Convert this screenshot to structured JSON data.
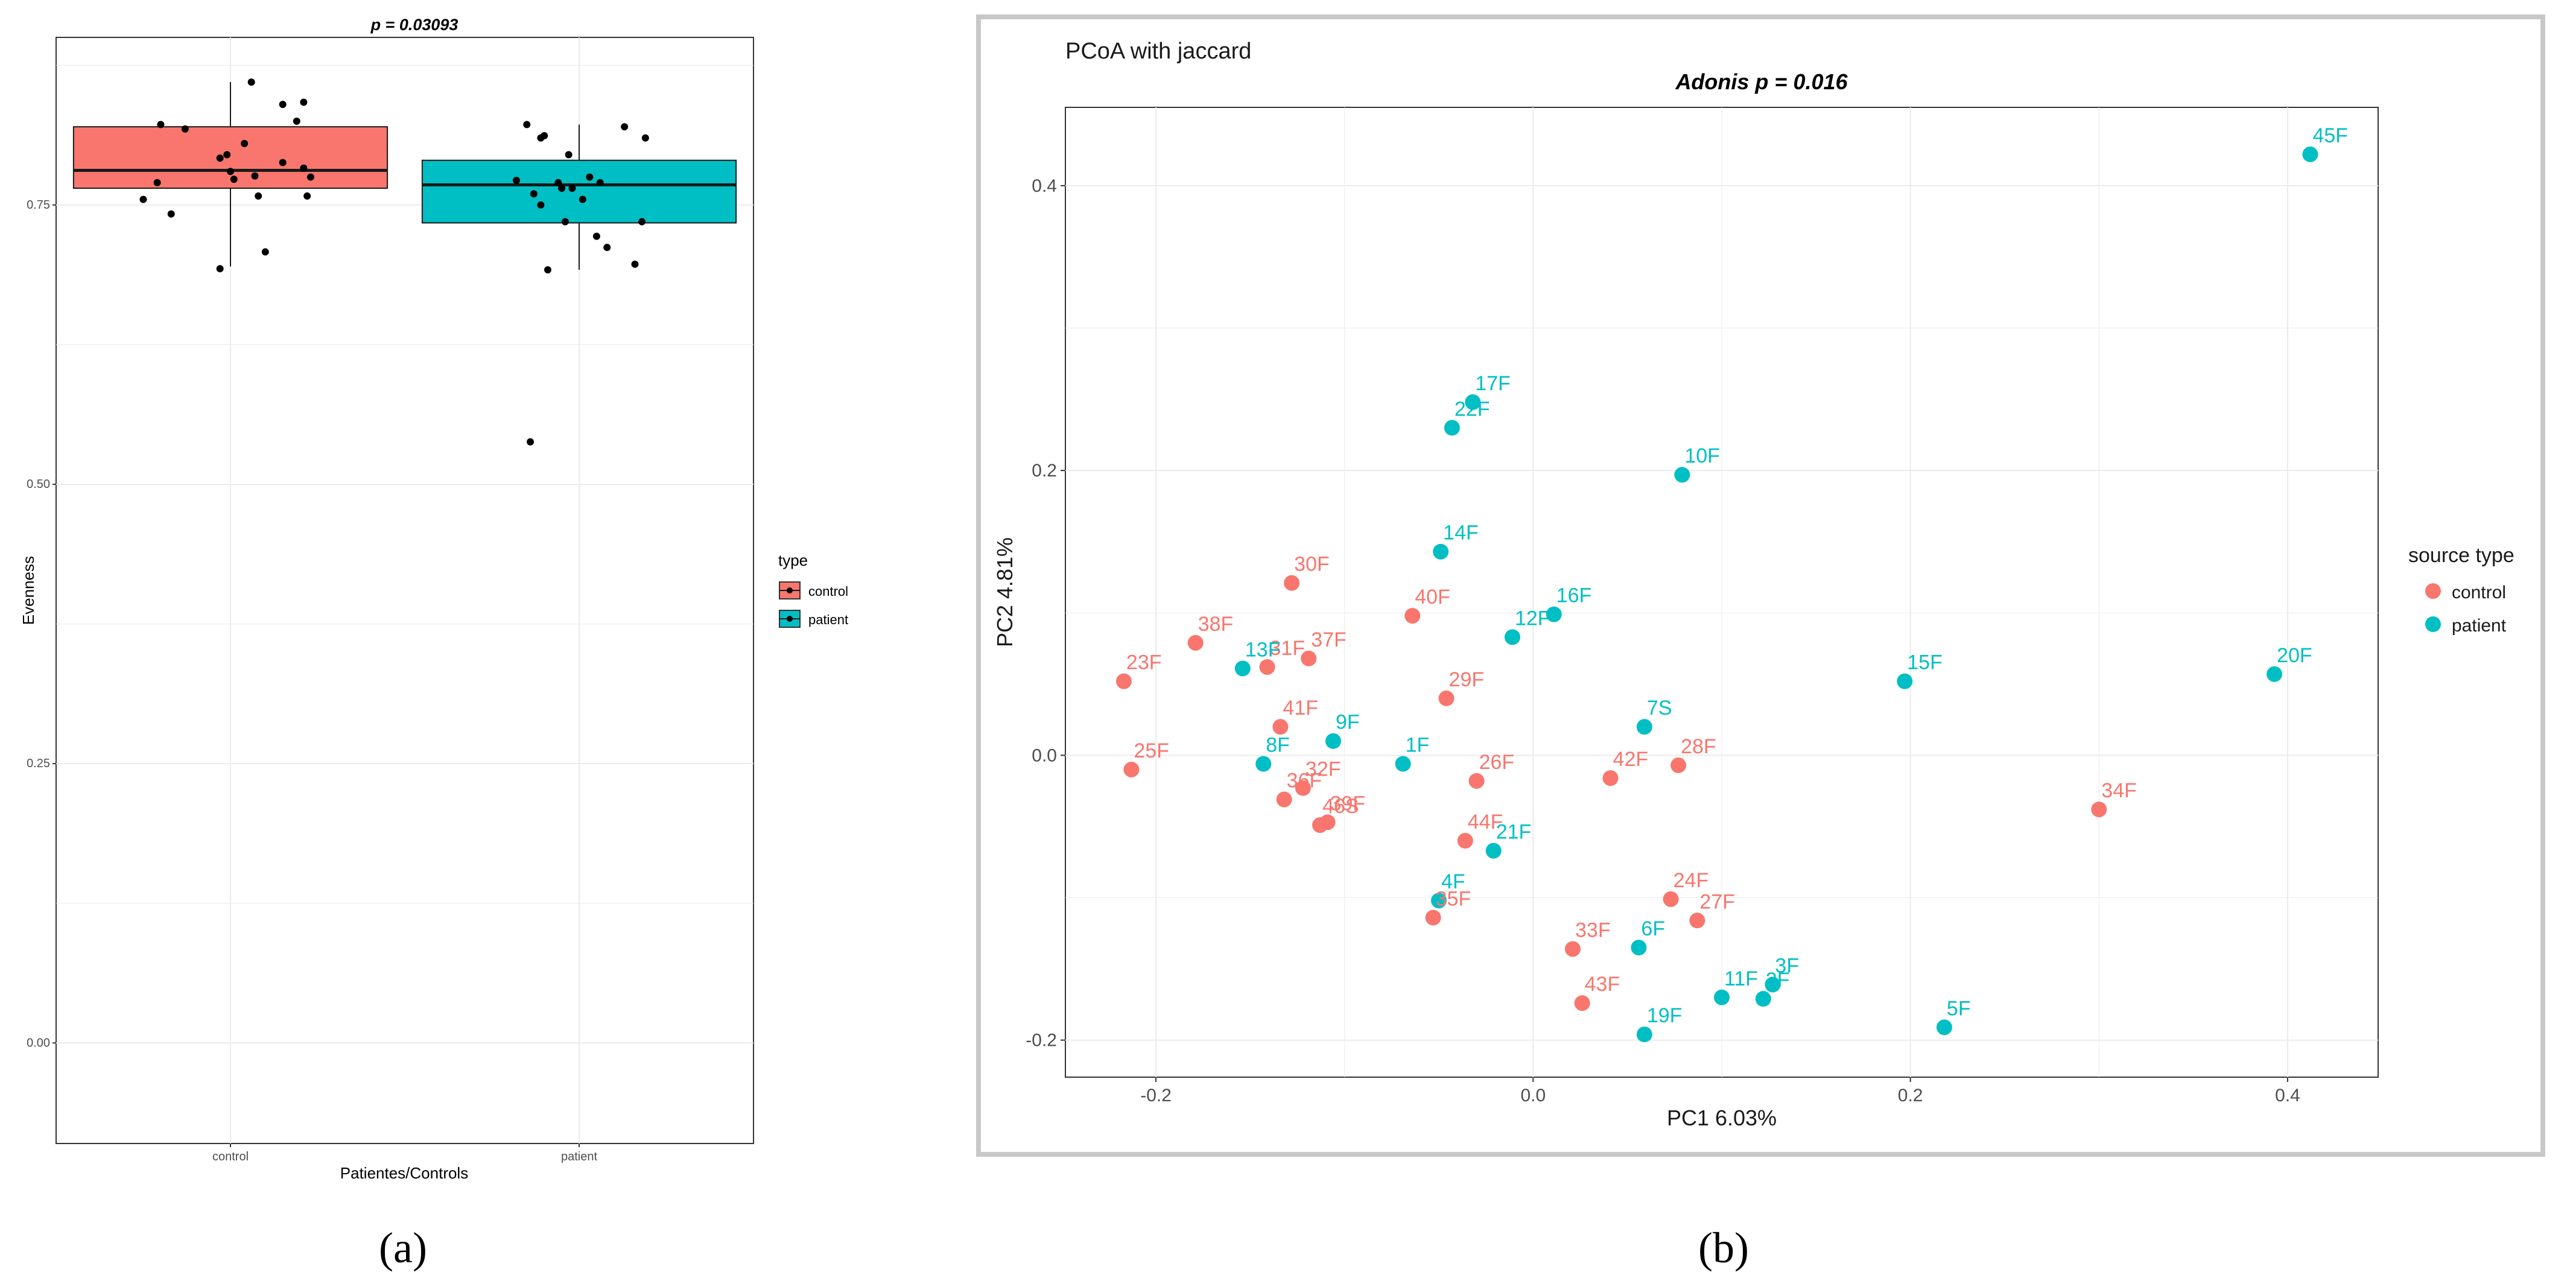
{
  "figure": {
    "caption_a": "(a)",
    "caption_b": "(b)"
  },
  "colors": {
    "control": "#F8766D",
    "patient": "#00BFC4",
    "grid": "#ebebeb",
    "box_line": "#1a1a1a"
  },
  "chart_data": [
    {
      "id": "a",
      "type": "boxplot",
      "title": "p = 0.03093",
      "xlabel": "Patientes/Controls",
      "ylabel": "Evenness",
      "categories": [
        "control",
        "patient"
      ],
      "ylim": [
        -0.09,
        0.9
      ],
      "yticks": [
        0.0,
        0.25,
        0.5,
        0.75
      ],
      "ytick_labels": [
        "0.00",
        "0.25",
        "0.50",
        "0.75"
      ],
      "legend": {
        "title": "type",
        "entries": [
          "control",
          "patient"
        ],
        "placement": "right"
      },
      "boxes": [
        {
          "name": "control",
          "q1": 0.765,
          "median": 0.781,
          "q3": 0.82,
          "whisker_low": 0.695,
          "whisker_high": 0.86
        },
        {
          "name": "patient",
          "q1": 0.734,
          "median": 0.768,
          "q3": 0.79,
          "whisker_low": 0.692,
          "whisker_high": 0.822
        }
      ],
      "points": [
        {
          "group": "control",
          "x_jitter": -0.25,
          "y": 0.755
        },
        {
          "group": "control",
          "x_jitter": -0.21,
          "y": 0.77
        },
        {
          "group": "control",
          "x_jitter": -0.17,
          "y": 0.742
        },
        {
          "group": "control",
          "x_jitter": -0.2,
          "y": 0.822
        },
        {
          "group": "control",
          "x_jitter": -0.13,
          "y": 0.818
        },
        {
          "group": "control",
          "x_jitter": -0.03,
          "y": 0.693
        },
        {
          "group": "control",
          "x_jitter": -0.03,
          "y": 0.792
        },
        {
          "group": "control",
          "x_jitter": -0.01,
          "y": 0.795
        },
        {
          "group": "control",
          "x_jitter": 0.0,
          "y": 0.78
        },
        {
          "group": "control",
          "x_jitter": 0.01,
          "y": 0.773
        },
        {
          "group": "control",
          "x_jitter": 0.07,
          "y": 0.776
        },
        {
          "group": "control",
          "x_jitter": 0.04,
          "y": 0.805
        },
        {
          "group": "control",
          "x_jitter": 0.08,
          "y": 0.758
        },
        {
          "group": "control",
          "x_jitter": 0.06,
          "y": 0.86
        },
        {
          "group": "control",
          "x_jitter": 0.1,
          "y": 0.708
        },
        {
          "group": "control",
          "x_jitter": 0.15,
          "y": 0.84
        },
        {
          "group": "control",
          "x_jitter": 0.15,
          "y": 0.788
        },
        {
          "group": "control",
          "x_jitter": 0.19,
          "y": 0.825
        },
        {
          "group": "control",
          "x_jitter": 0.21,
          "y": 0.842
        },
        {
          "group": "control",
          "x_jitter": 0.21,
          "y": 0.783
        },
        {
          "group": "control",
          "x_jitter": 0.22,
          "y": 0.758
        },
        {
          "group": "control",
          "x_jitter": 0.23,
          "y": 0.775
        },
        {
          "group": "patient",
          "x_jitter": -0.18,
          "y": 0.772
        },
        {
          "group": "patient",
          "x_jitter": -0.15,
          "y": 0.822
        },
        {
          "group": "patient",
          "x_jitter": -0.11,
          "y": 0.81
        },
        {
          "group": "patient",
          "x_jitter": -0.1,
          "y": 0.812
        },
        {
          "group": "patient",
          "x_jitter": -0.13,
          "y": 0.76
        },
        {
          "group": "patient",
          "x_jitter": -0.14,
          "y": 0.538
        },
        {
          "group": "patient",
          "x_jitter": -0.09,
          "y": 0.692
        },
        {
          "group": "patient",
          "x_jitter": -0.06,
          "y": 0.77
        },
        {
          "group": "patient",
          "x_jitter": -0.05,
          "y": 0.765
        },
        {
          "group": "patient",
          "x_jitter": -0.03,
          "y": 0.795
        },
        {
          "group": "patient",
          "x_jitter": -0.02,
          "y": 0.765
        },
        {
          "group": "patient",
          "x_jitter": -0.04,
          "y": 0.735
        },
        {
          "group": "patient",
          "x_jitter": -0.11,
          "y": 0.75
        },
        {
          "group": "patient",
          "x_jitter": 0.01,
          "y": 0.755
        },
        {
          "group": "patient",
          "x_jitter": 0.03,
          "y": 0.775
        },
        {
          "group": "patient",
          "x_jitter": 0.06,
          "y": 0.77
        },
        {
          "group": "patient",
          "x_jitter": 0.05,
          "y": 0.722
        },
        {
          "group": "patient",
          "x_jitter": 0.08,
          "y": 0.712
        },
        {
          "group": "patient",
          "x_jitter": 0.13,
          "y": 0.82
        },
        {
          "group": "patient",
          "x_jitter": 0.16,
          "y": 0.697
        },
        {
          "group": "patient",
          "x_jitter": 0.19,
          "y": 0.81
        },
        {
          "group": "patient",
          "x_jitter": 0.18,
          "y": 0.735
        }
      ]
    },
    {
      "id": "b",
      "type": "scatter",
      "panel_title": "PCoA with jaccard",
      "title": "Adonis p = 0.016",
      "xlabel": "PC1 6.03%",
      "ylabel": "PC2 4.81%",
      "xlim": [
        -0.248,
        0.448
      ],
      "ylim": [
        -0.226,
        0.455
      ],
      "xticks": [
        -0.2,
        0.0,
        0.2,
        0.4
      ],
      "xtick_labels": [
        "-0.2",
        "0.0",
        "0.2",
        "0.4"
      ],
      "yticks": [
        -0.2,
        0.0,
        0.2,
        0.4
      ],
      "ytick_labels": [
        "-0.2",
        "0.0",
        "0.2",
        "0.4"
      ],
      "legend": {
        "title": "source type",
        "entries": [
          "control",
          "patient"
        ],
        "placement": "right"
      },
      "points": [
        {
          "label": "45F",
          "x": 0.412,
          "y": 0.422,
          "group": "patient"
        },
        {
          "label": "17F",
          "x": -0.032,
          "y": 0.248,
          "group": "patient"
        },
        {
          "label": "22F",
          "x": -0.043,
          "y": 0.23,
          "group": "patient"
        },
        {
          "label": "10F",
          "x": 0.079,
          "y": 0.197,
          "group": "patient"
        },
        {
          "label": "14F",
          "x": -0.049,
          "y": 0.143,
          "group": "patient"
        },
        {
          "label": "30F",
          "x": -0.128,
          "y": 0.121,
          "group": "control"
        },
        {
          "label": "40F",
          "x": -0.064,
          "y": 0.098,
          "group": "control"
        },
        {
          "label": "16F",
          "x": 0.011,
          "y": 0.099,
          "group": "patient"
        },
        {
          "label": "12F",
          "x": -0.011,
          "y": 0.083,
          "group": "patient"
        },
        {
          "label": "38F",
          "x": -0.179,
          "y": 0.079,
          "group": "control"
        },
        {
          "label": "37F",
          "x": -0.119,
          "y": 0.068,
          "group": "control"
        },
        {
          "label": "31F",
          "x": -0.141,
          "y": 0.062,
          "group": "control"
        },
        {
          "label": "13F",
          "x": -0.154,
          "y": 0.061,
          "group": "patient"
        },
        {
          "label": "23F",
          "x": -0.217,
          "y": 0.052,
          "group": "control"
        },
        {
          "label": "15F",
          "x": 0.197,
          "y": 0.052,
          "group": "patient"
        },
        {
          "label": "20F",
          "x": 0.393,
          "y": 0.057,
          "group": "patient"
        },
        {
          "label": "29F",
          "x": -0.046,
          "y": 0.04,
          "group": "control"
        },
        {
          "label": "7S",
          "x": 0.059,
          "y": 0.02,
          "group": "patient"
        },
        {
          "label": "41F",
          "x": -0.134,
          "y": 0.02,
          "group": "control"
        },
        {
          "label": "9F",
          "x": -0.106,
          "y": 0.01,
          "group": "patient"
        },
        {
          "label": "25F",
          "x": -0.213,
          "y": -0.01,
          "group": "control"
        },
        {
          "label": "8F",
          "x": -0.143,
          "y": -0.006,
          "group": "patient"
        },
        {
          "label": "1F",
          "x": -0.069,
          "y": -0.006,
          "group": "patient"
        },
        {
          "label": "28F",
          "x": 0.077,
          "y": -0.007,
          "group": "control"
        },
        {
          "label": "42F",
          "x": 0.041,
          "y": -0.016,
          "group": "control"
        },
        {
          "label": "26F",
          "x": -0.03,
          "y": -0.018,
          "group": "control"
        },
        {
          "label": "32F",
          "x": -0.122,
          "y": -0.023,
          "group": "control"
        },
        {
          "label": "36F",
          "x": -0.132,
          "y": -0.031,
          "group": "control"
        },
        {
          "label": "34F",
          "x": 0.3,
          "y": -0.038,
          "group": "control"
        },
        {
          "label": "39F",
          "x": -0.109,
          "y": -0.047,
          "group": "control"
        },
        {
          "label": "46S",
          "x": -0.113,
          "y": -0.049,
          "group": "control"
        },
        {
          "label": "44F",
          "x": -0.036,
          "y": -0.06,
          "group": "control"
        },
        {
          "label": "21F",
          "x": -0.021,
          "y": -0.067,
          "group": "patient"
        },
        {
          "label": "4F",
          "x": -0.05,
          "y": -0.102,
          "group": "patient"
        },
        {
          "label": "35F",
          "x": -0.053,
          "y": -0.114,
          "group": "control"
        },
        {
          "label": "24F",
          "x": 0.073,
          "y": -0.101,
          "group": "control"
        },
        {
          "label": "27F",
          "x": 0.087,
          "y": -0.116,
          "group": "control"
        },
        {
          "label": "33F",
          "x": 0.021,
          "y": -0.136,
          "group": "control"
        },
        {
          "label": "6F",
          "x": 0.056,
          "y": -0.135,
          "group": "patient"
        },
        {
          "label": "3F",
          "x": 0.127,
          "y": -0.161,
          "group": "patient"
        },
        {
          "label": "2F",
          "x": 0.122,
          "y": -0.171,
          "group": "patient"
        },
        {
          "label": "11F",
          "x": 0.1,
          "y": -0.17,
          "group": "patient"
        },
        {
          "label": "43F",
          "x": 0.026,
          "y": -0.174,
          "group": "control"
        },
        {
          "label": "19F",
          "x": 0.059,
          "y": -0.196,
          "group": "patient"
        },
        {
          "label": "5F",
          "x": 0.218,
          "y": -0.191,
          "group": "patient"
        }
      ]
    }
  ]
}
